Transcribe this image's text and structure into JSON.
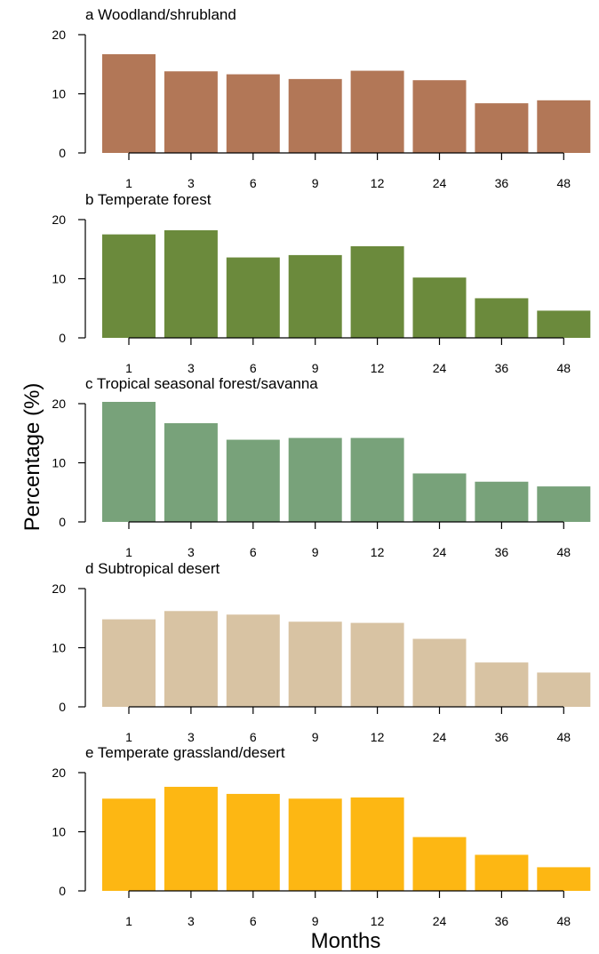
{
  "figure": {
    "ylabel": "Percentage (%)",
    "xlabel": "Months"
  },
  "chart_data": [
    {
      "type": "bar",
      "title": "a Woodland/shrubland",
      "categories": [
        "1",
        "3",
        "6",
        "9",
        "12",
        "24",
        "36",
        "48"
      ],
      "values": [
        16.7,
        13.8,
        13.3,
        12.5,
        13.9,
        12.3,
        8.4,
        8.9
      ],
      "yticks": [
        0,
        10,
        20
      ],
      "ylim": [
        0,
        20
      ],
      "color": "#b27757"
    },
    {
      "type": "bar",
      "title": "b Temperate forest",
      "categories": [
        "1",
        "3",
        "6",
        "9",
        "12",
        "24",
        "36",
        "48"
      ],
      "values": [
        17.5,
        18.2,
        13.6,
        14.0,
        15.5,
        10.2,
        6.7,
        4.6
      ],
      "yticks": [
        0,
        10,
        20
      ],
      "ylim": [
        0,
        20
      ],
      "color": "#6b8a3c"
    },
    {
      "type": "bar",
      "title": "c Tropical seasonal forest/savanna",
      "categories": [
        "1",
        "3",
        "6",
        "9",
        "12",
        "24",
        "36",
        "48"
      ],
      "values": [
        20.3,
        16.7,
        13.9,
        14.2,
        14.2,
        8.2,
        6.8,
        6.0
      ],
      "yticks": [
        0,
        10,
        20
      ],
      "ylim": [
        0,
        20
      ],
      "color": "#78a27a"
    },
    {
      "type": "bar",
      "title": "d Subtropical desert",
      "categories": [
        "1",
        "3",
        "6",
        "9",
        "12",
        "24",
        "36",
        "48"
      ],
      "values": [
        14.8,
        16.2,
        15.6,
        14.4,
        14.2,
        11.5,
        7.5,
        5.8
      ],
      "yticks": [
        0,
        10,
        20
      ],
      "ylim": [
        0,
        20
      ],
      "color": "#d8c3a3"
    },
    {
      "type": "bar",
      "title": "e Temperate grassland/desert",
      "categories": [
        "1",
        "3",
        "6",
        "9",
        "12",
        "24",
        "36",
        "48"
      ],
      "values": [
        15.6,
        17.6,
        16.4,
        15.6,
        15.8,
        9.1,
        6.1,
        4.0
      ],
      "yticks": [
        0,
        10,
        20
      ],
      "ylim": [
        0,
        20
      ],
      "color": "#fdb713"
    }
  ]
}
